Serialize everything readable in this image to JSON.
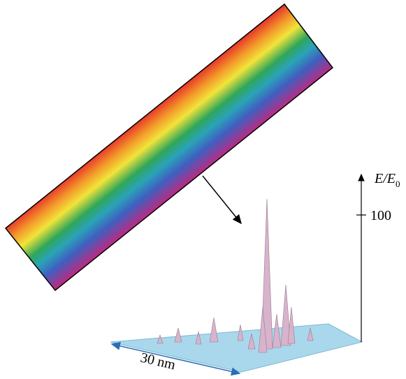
{
  "axis": {
    "label": "E/E",
    "label_subscript": "0",
    "tick": "100"
  },
  "scale_bar": "30 nm"
}
